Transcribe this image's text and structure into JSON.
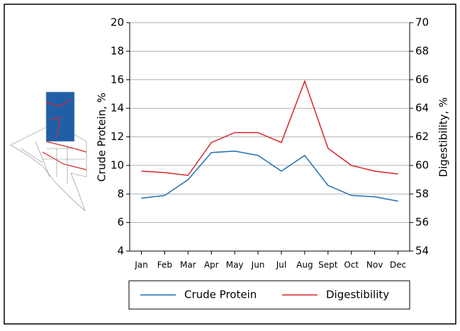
{
  "chart_data": {
    "type": "line",
    "categories": [
      "Jan",
      "Feb",
      "Mar",
      "Apr",
      "May",
      "Jun",
      "Jul",
      "Aug",
      "Sept",
      "Oct",
      "Nov",
      "Dec"
    ],
    "ylabel": "Crude Protein, %",
    "y2label": "Digestibility, %",
    "ylim": [
      4,
      20
    ],
    "yticks": [
      4,
      6,
      8,
      10,
      12,
      14,
      16,
      18,
      20
    ],
    "y2lim": [
      54,
      70
    ],
    "y2ticks": [
      54,
      56,
      58,
      60,
      62,
      64,
      66,
      68,
      70
    ],
    "grid": true,
    "series": [
      {
        "name": "Crude Protein",
        "color": "#1f6fb4",
        "values": [
          7.7,
          7.9,
          9.0,
          10.9,
          11.0,
          10.7,
          9.6,
          10.7,
          8.6,
          7.9,
          7.8,
          7.5
        ]
      },
      {
        "name": "Digestibility",
        "color": "#d7262e",
        "axis": "y2",
        "values": [
          59.6,
          59.5,
          59.3,
          61.6,
          62.3,
          62.3,
          61.6,
          65.9,
          61.2,
          60.0,
          59.6,
          59.4
        ]
      }
    ]
  }
}
